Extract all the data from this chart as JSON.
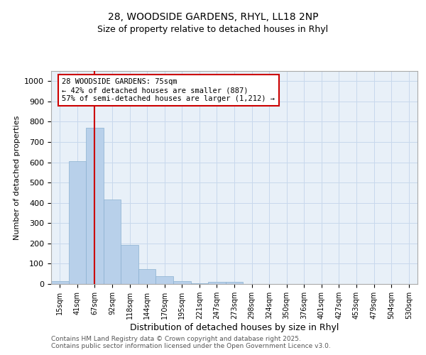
{
  "title_line1": "28, WOODSIDE GARDENS, RHYL, LL18 2NP",
  "title_line2": "Size of property relative to detached houses in Rhyl",
  "xlabel": "Distribution of detached houses by size in Rhyl",
  "ylabel": "Number of detached properties",
  "bar_labels": [
    "15sqm",
    "41sqm",
    "67sqm",
    "92sqm",
    "118sqm",
    "144sqm",
    "170sqm",
    "195sqm",
    "221sqm",
    "247sqm",
    "273sqm",
    "298sqm",
    "324sqm",
    "350sqm",
    "376sqm",
    "401sqm",
    "427sqm",
    "453sqm",
    "479sqm",
    "504sqm",
    "530sqm"
  ],
  "bar_values": [
    15,
    605,
    770,
    415,
    193,
    75,
    40,
    15,
    3,
    10,
    10,
    0,
    0,
    0,
    0,
    0,
    0,
    0,
    0,
    0,
    0
  ],
  "bar_color": "#b8d0ea",
  "bar_edge_color": "#8ab0d0",
  "grid_color": "#c8d8ec",
  "axes_bg_color": "#e8f0f8",
  "fig_bg_color": "#ffffff",
  "vline_x": 2.0,
  "vline_color": "#cc0000",
  "annotation_text": "28 WOODSIDE GARDENS: 75sqm\n← 42% of detached houses are smaller (887)\n57% of semi-detached houses are larger (1,212) →",
  "annotation_box_color": "#cc0000",
  "annotation_box_bg": "#ffffff",
  "ylim": [
    0,
    1050
  ],
  "yticks": [
    0,
    100,
    200,
    300,
    400,
    500,
    600,
    700,
    800,
    900,
    1000
  ],
  "footer_text": "Contains HM Land Registry data © Crown copyright and database right 2025.\nContains public sector information licensed under the Open Government Licence v3.0.",
  "figsize": [
    6.0,
    5.0
  ],
  "dpi": 100
}
